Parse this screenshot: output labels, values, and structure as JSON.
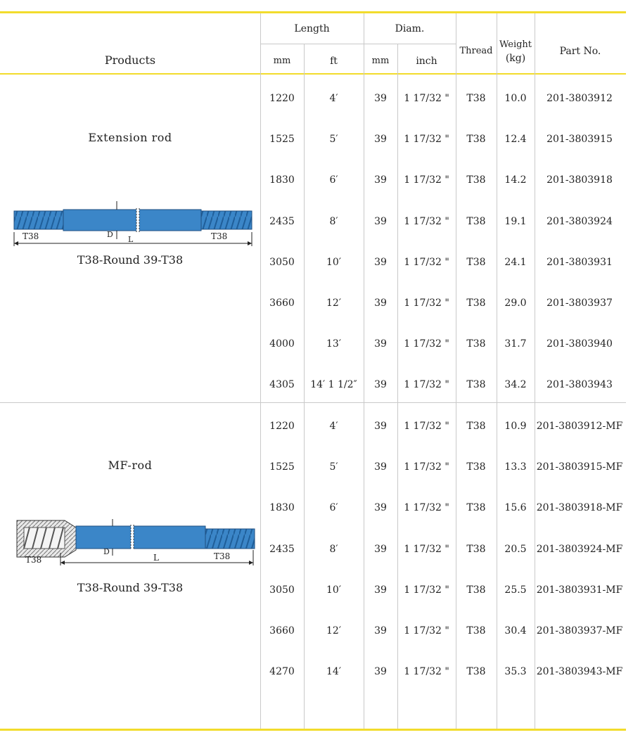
{
  "header": {
    "products": "Products",
    "length": "Length",
    "diam": "Diam.",
    "thread": "Thread",
    "weight_line1": "Weight",
    "weight_line2": "(kg)",
    "part_no": "Part No.",
    "mm": "mm",
    "ft": "ft",
    "mm2": "mm",
    "inch": "inch"
  },
  "colors": {
    "accent_yellow": "#f2dc2c",
    "rod_blue": "#3b86c8",
    "grid": "#c9c9c9"
  },
  "groups": [
    {
      "name": "Extension rod",
      "caption": "T38-Round 39-T38",
      "diagram": {
        "left_label": "T38",
        "right_label": "T38",
        "d_label": "D",
        "l_label": "L"
      },
      "rows": [
        {
          "mm": "1220",
          "ft": "4′",
          "dmm": "39",
          "inch": "1 17/32 \"",
          "thread": "T38",
          "weight": "10.0",
          "part": "201-3803912"
        },
        {
          "mm": "1525",
          "ft": "5′",
          "dmm": "39",
          "inch": "1 17/32 \"",
          "thread": "T38",
          "weight": "12.4",
          "part": "201-3803915"
        },
        {
          "mm": "1830",
          "ft": "6′",
          "dmm": "39",
          "inch": "1 17/32 \"",
          "thread": "T38",
          "weight": "14.2",
          "part": "201-3803918"
        },
        {
          "mm": "2435",
          "ft": "8′",
          "dmm": "39",
          "inch": "1 17/32 \"",
          "thread": "T38",
          "weight": "19.1",
          "part": "201-3803924"
        },
        {
          "mm": "3050",
          "ft": "10′",
          "dmm": "39",
          "inch": "1 17/32 \"",
          "thread": "T38",
          "weight": "24.1",
          "part": "201-3803931"
        },
        {
          "mm": "3660",
          "ft": "12′",
          "dmm": "39",
          "inch": "1 17/32 \"",
          "thread": "T38",
          "weight": "29.0",
          "part": "201-3803937"
        },
        {
          "mm": "4000",
          "ft": "13′",
          "dmm": "39",
          "inch": "1 17/32 \"",
          "thread": "T38",
          "weight": "31.7",
          "part": "201-3803940"
        },
        {
          "mm": "4305",
          "ft": "14′ 1 1/2″",
          "dmm": "39",
          "inch": "1 17/32 \"",
          "thread": "T38",
          "weight": "34.2",
          "part": "201-3803943"
        }
      ]
    },
    {
      "name": "MF-rod",
      "caption": "T38-Round 39-T38",
      "diagram": {
        "left_label": "T38",
        "right_label": "T38",
        "d_label": "D",
        "l_label": "L"
      },
      "rows": [
        {
          "mm": "1220",
          "ft": "4′",
          "dmm": "39",
          "inch": "1 17/32 \"",
          "thread": "T38",
          "weight": "10.9",
          "part": "201-3803912-MF"
        },
        {
          "mm": "1525",
          "ft": "5′",
          "dmm": "39",
          "inch": "1 17/32 \"",
          "thread": "T38",
          "weight": "13.3",
          "part": "201-3803915-MF"
        },
        {
          "mm": "1830",
          "ft": "6′",
          "dmm": "39",
          "inch": "1 17/32 \"",
          "thread": "T38",
          "weight": "15.6",
          "part": "201-3803918-MF"
        },
        {
          "mm": "2435",
          "ft": "8′",
          "dmm": "39",
          "inch": "1 17/32 \"",
          "thread": "T38",
          "weight": "20.5",
          "part": "201-3803924-MF"
        },
        {
          "mm": "3050",
          "ft": "10′",
          "dmm": "39",
          "inch": "1 17/32 \"",
          "thread": "T38",
          "weight": "25.5",
          "part": "201-3803931-MF"
        },
        {
          "mm": "3660",
          "ft": "12′",
          "dmm": "39",
          "inch": "1 17/32 \"",
          "thread": "T38",
          "weight": "30.4",
          "part": "201-3803937-MF"
        },
        {
          "mm": "4270",
          "ft": "14′",
          "dmm": "39",
          "inch": "1 17/32 \"",
          "thread": "T38",
          "weight": "35.3",
          "part": "201-3803943-MF"
        }
      ]
    }
  ]
}
